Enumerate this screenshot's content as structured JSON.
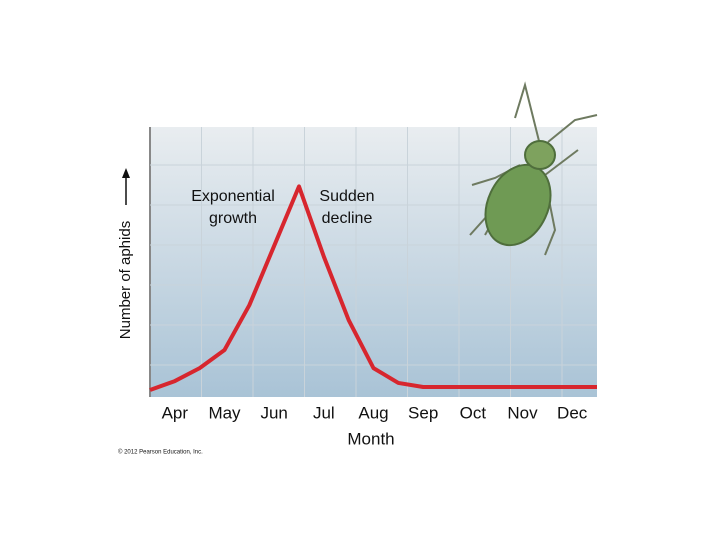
{
  "chart_data": {
    "type": "line",
    "annotations": [
      "Exponential growth",
      "Sudden decline"
    ],
    "ylabel": "Number of aphids",
    "xlabel": "Month",
    "credit": "© 2012 Pearson Education, Inc.",
    "categories": [
      null,
      "Apr",
      null,
      "May",
      null,
      "Jun",
      null,
      "Jul",
      null,
      "Aug",
      null,
      "Sep",
      null,
      "Oct",
      null,
      "Nov",
      null,
      "Dec",
      null
    ],
    "series": [
      {
        "color": "#d7262e",
        "values": [
          2.6,
          5.9,
          10.7,
          17.4,
          34,
          56,
          78,
          52,
          28.5,
          10.7,
          5.2,
          3.7,
          3.7,
          3.7,
          3.7,
          3.7,
          3.7,
          3.7,
          3.7
        ]
      }
    ],
    "ylim": [
      0,
      100
    ],
    "grid": true
  }
}
